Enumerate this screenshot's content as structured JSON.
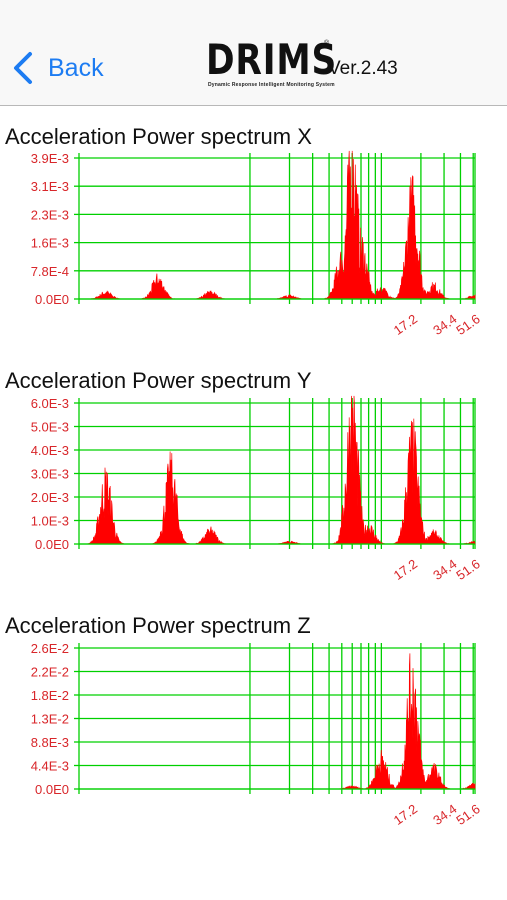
{
  "nav": {
    "back_label": "Back",
    "brand_name": "DRIMS",
    "brand_tagline": "Dynamic Response Intelligent Monitoring System",
    "version": "Ver.2.43",
    "back_icon": "chevron-left-icon"
  },
  "colors": {
    "grid": "#00d000",
    "signal": "#ff0000",
    "label": "#d8262a",
    "nav_accent": "#1d7cf2"
  },
  "charts": [
    {
      "title": "Acceleration Power spectrum X",
      "chart_data": {
        "type": "area",
        "x_scale": "log",
        "x_tick_labels": [
          "17.2",
          "34.4",
          "51.6"
        ],
        "y_tick_labels": [
          "0.0E0",
          "7.8E-4",
          "1.6E-3",
          "2.3E-3",
          "3.1E-3",
          "3.9E-3"
        ],
        "ylim": [
          0,
          0.0039
        ],
        "peaks": [
          {
            "x": 0.08,
            "y": 0.0002
          },
          {
            "x": 0.2,
            "y": 0.0006
          },
          {
            "x": 0.5,
            "y": 0.0002
          },
          {
            "x": 2.0,
            "y": 0.0001
          },
          {
            "x": 5.0,
            "y": 0.0012
          },
          {
            "x": 6.0,
            "y": 0.0042
          },
          {
            "x": 7.0,
            "y": 0.0016
          },
          {
            "x": 10.0,
            "y": 0.0003
          },
          {
            "x": 17.2,
            "y": 0.0029
          },
          {
            "x": 25.0,
            "y": 0.0004
          },
          {
            "x": 51.6,
            "y": 0.0001
          }
        ]
      }
    },
    {
      "title": "Acceleration Power spectrum Y",
      "chart_data": {
        "type": "area",
        "x_scale": "log",
        "x_tick_labels": [
          "17.2",
          "34.4",
          "51.6"
        ],
        "y_tick_labels": [
          "0.0E0",
          "1.0E-3",
          "2.0E-3",
          "3.0E-3",
          "4.0E-3",
          "5.0E-3",
          "6.0E-3"
        ],
        "ylim": [
          0,
          0.006
        ],
        "peaks": [
          {
            "x": 0.08,
            "y": 0.0028
          },
          {
            "x": 0.25,
            "y": 0.0032
          },
          {
            "x": 0.5,
            "y": 0.0006
          },
          {
            "x": 2.0,
            "y": 0.0001
          },
          {
            "x": 6.0,
            "y": 0.006
          },
          {
            "x": 8.0,
            "y": 0.0008
          },
          {
            "x": 17.2,
            "y": 0.0045
          },
          {
            "x": 25.0,
            "y": 0.0005
          },
          {
            "x": 51.6,
            "y": 0.0001
          }
        ]
      }
    },
    {
      "title": "Acceleration Power spectrum Z",
      "chart_data": {
        "type": "area",
        "x_scale": "log",
        "x_tick_labels": [
          "17.2",
          "34.4",
          "51.6"
        ],
        "y_tick_labels": [
          "0.0E0",
          "4.4E-3",
          "8.8E-3",
          "1.3E-2",
          "1.8E-2",
          "2.2E-2",
          "2.6E-2"
        ],
        "ylim": [
          0,
          0.026
        ],
        "peaks": [
          {
            "x": 2.0,
            "y": 0.0
          },
          {
            "x": 6.0,
            "y": 0.0005
          },
          {
            "x": 10.0,
            "y": 0.006
          },
          {
            "x": 17.2,
            "y": 0.022
          },
          {
            "x": 25.0,
            "y": 0.004
          },
          {
            "x": 51.6,
            "y": 0.001
          }
        ]
      }
    }
  ]
}
